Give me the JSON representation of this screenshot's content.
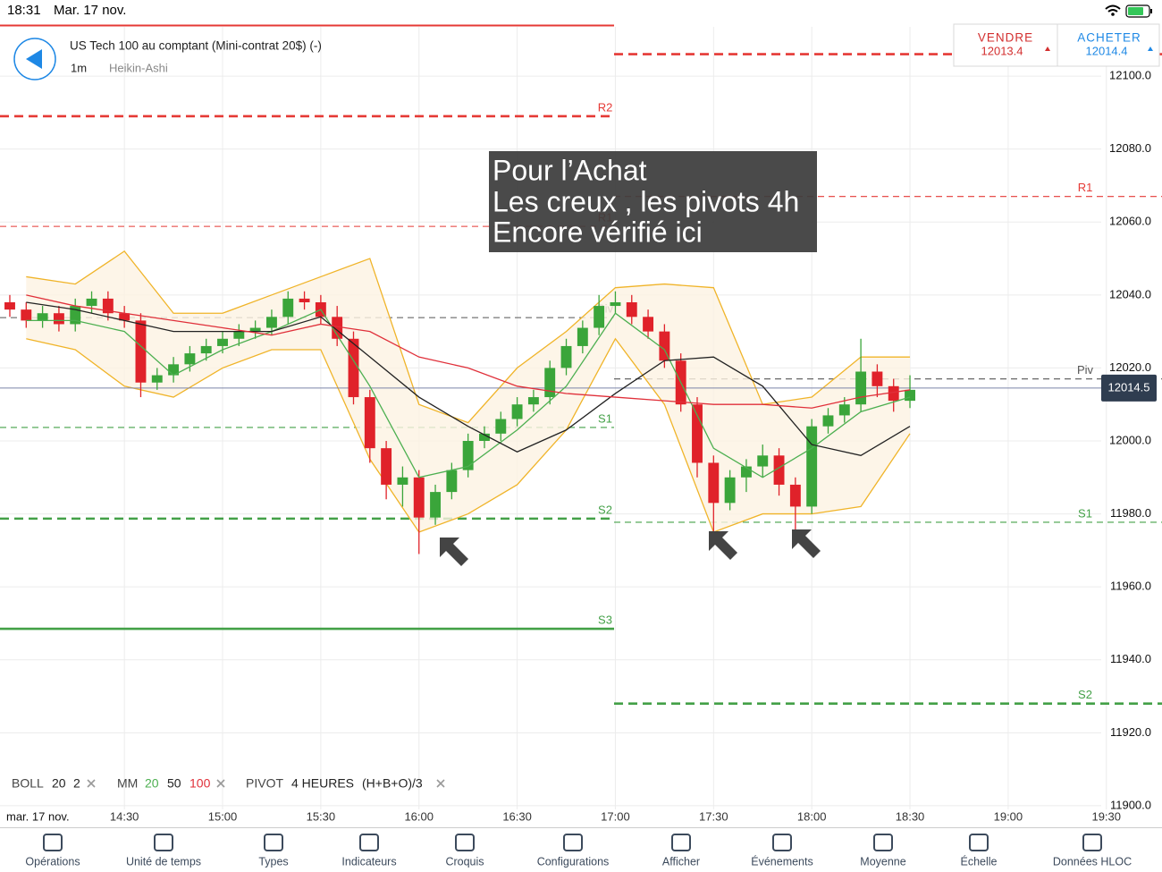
{
  "status_bar": {
    "time": "18:31",
    "date": "Mar. 17 nov."
  },
  "header": {
    "instrument": "US Tech 100 au comptant (Mini-contrat 20$) (-)",
    "timeframe": "1m",
    "chart_type": "Heikin-Ashi"
  },
  "trade": {
    "sell_label": "VENDRE",
    "sell_price": "12013.4",
    "buy_label": "ACHETER",
    "buy_price": "12014.4"
  },
  "annotation": [
    "Pour l’Achat",
    "Les creux , les pivots 4h",
    "Encore vérifié ici"
  ],
  "indicator_legend": {
    "boll": [
      "BOLL",
      "20",
      "2"
    ],
    "mm": [
      "MM",
      "20",
      "50",
      "100"
    ],
    "pivot": [
      "PIVOT",
      "4 HEURES",
      "(H+B+O)/3"
    ]
  },
  "date_label": "mar. 17 nov.",
  "toolbar": [
    "Opérations",
    "Unité de temps",
    "Types",
    "Indicateurs",
    "Croquis",
    "Configurations",
    "Afficher",
    "Événements",
    "Moyenne",
    "Échelle",
    "Données HLOC"
  ],
  "chart_data": {
    "type": "candlestick",
    "xlim": [
      "13:52",
      "19:47"
    ],
    "ylim": [
      11899,
      12113.5
    ],
    "xticks": [
      "14:30",
      "15:00",
      "15:30",
      "16:00",
      "16:30",
      "17:00",
      "17:30",
      "18:00",
      "18:30",
      "19:00",
      "19:30"
    ],
    "yticks": [
      {
        "value": 12100,
        "label": "12100.0"
      },
      {
        "value": 12080,
        "label": "12080.0"
      },
      {
        "value": 12060,
        "label": "12060.0"
      },
      {
        "value": 12040,
        "label": "12040.0"
      },
      {
        "value": 12020,
        "label": "12020.0"
      },
      {
        "value": 12000,
        "label": "12000.0"
      },
      {
        "value": 11980,
        "label": "11980.0"
      },
      {
        "value": 11960,
        "label": "11960.0"
      },
      {
        "value": 11940,
        "label": "11940.0"
      },
      {
        "value": 11920,
        "label": "11920.0"
      },
      {
        "value": 11900,
        "label": "11900.0"
      }
    ],
    "grid": true,
    "up_color": "#3aa53a",
    "down_color": "#e0222a",
    "times": [
      "13:55",
      "14:00",
      "14:05",
      "14:10",
      "14:15",
      "14:20",
      "14:25",
      "14:30",
      "14:35",
      "14:40",
      "14:45",
      "14:50",
      "14:55",
      "15:00",
      "15:05",
      "15:10",
      "15:15",
      "15:20",
      "15:25",
      "15:30",
      "15:35",
      "15:40",
      "15:45",
      "15:50",
      "15:55",
      "16:00",
      "16:05",
      "16:10",
      "16:15",
      "16:20",
      "16:25",
      "16:30",
      "16:35",
      "16:40",
      "16:45",
      "16:50",
      "16:55",
      "17:00",
      "17:05",
      "17:10",
      "17:15",
      "17:20",
      "17:25",
      "17:30",
      "17:35",
      "17:40",
      "17:45",
      "17:50",
      "17:55",
      "18:00",
      "18:05",
      "18:10",
      "18:15",
      "18:20",
      "18:25",
      "18:30"
    ],
    "open": [
      12038,
      12036,
      12033,
      12035,
      12032,
      12037,
      12039,
      12035,
      12033,
      12016,
      12018,
      12021,
      12024,
      12026,
      12028,
      12030,
      12031,
      12034,
      12039,
      12038,
      12034,
      12028,
      12012,
      11998,
      11988,
      11990,
      11979,
      11986,
      11992,
      12000,
      12002,
      12006,
      12010,
      12012,
      12020,
      12026,
      12031,
      12037,
      12038,
      12034,
      12030,
      12022,
      12010,
      11994,
      11983,
      11990,
      11993,
      11996,
      11988,
      11982,
      12004,
      12007,
      12010,
      12019,
      12015,
      12011
    ],
    "high": [
      12040,
      12038,
      12037,
      12037,
      12039,
      12041,
      12041,
      12037,
      12035,
      12020,
      12023,
      12026,
      12028,
      12030,
      12032,
      12033,
      12036,
      12041,
      12041,
      12040,
      12037,
      12030,
      12014,
      12000,
      11993,
      11992,
      11988,
      11994,
      12002,
      12004,
      12008,
      12012,
      12014,
      12022,
      12028,
      12033,
      12040,
      12041,
      12040,
      12036,
      12032,
      12024,
      12012,
      11996,
      11992,
      11995,
      11999,
      11998,
      11990,
      12006,
      12009,
      12012,
      12028,
      12021,
      12017,
      12018
    ],
    "low": [
      12034,
      12031,
      12031,
      12030,
      12030,
      12035,
      12033,
      12031,
      12012,
      12014,
      12016,
      12019,
      12022,
      12024,
      12026,
      12028,
      12029,
      12032,
      12036,
      12032,
      12026,
      12010,
      11994,
      11984,
      11982,
      11969,
      11977,
      11984,
      11990,
      11998,
      12000,
      12004,
      12008,
      12010,
      12018,
      12024,
      12029,
      12035,
      12032,
      12028,
      12020,
      12008,
      11990,
      11972,
      11981,
      11986,
      11990,
      11985,
      11975,
      11980,
      12002,
      12005,
      12008,
      12012,
      12008,
      12009
    ],
    "close": [
      12036,
      12033,
      12035,
      12032,
      12037,
      12039,
      12035,
      12033,
      12016,
      12018,
      12021,
      12024,
      12026,
      12028,
      12030,
      12031,
      12034,
      12039,
      12038,
      12034,
      12028,
      12012,
      11998,
      11988,
      11990,
      11979,
      11986,
      11992,
      12000,
      12002,
      12006,
      12010,
      12012,
      12020,
      12026,
      12031,
      12037,
      12038,
      12034,
      12030,
      12022,
      12010,
      11994,
      11983,
      11990,
      11993,
      11996,
      11988,
      11982,
      12004,
      12007,
      12010,
      12019,
      12015,
      12011,
      12014
    ],
    "indicator_times": [
      "14:00",
      "14:15",
      "14:30",
      "14:45",
      "15:00",
      "15:15",
      "15:30",
      "15:45",
      "16:00",
      "16:15",
      "16:30",
      "16:45",
      "17:00",
      "17:15",
      "17:30",
      "17:45",
      "18:00",
      "18:15",
      "18:30"
    ],
    "bands": {
      "color": "#f0b429",
      "upper": [
        12045,
        12043,
        12052,
        12035,
        12035,
        12040,
        12045,
        12050,
        12010,
        12005,
        12020,
        12030,
        12042,
        12043,
        12042,
        12010,
        12012,
        12023,
        12023
      ],
      "lower": [
        12028,
        12025,
        12015,
        12012,
        12020,
        12025,
        12025,
        11995,
        11975,
        11980,
        11988,
        12003,
        12028,
        12010,
        11975,
        11980,
        11980,
        11982,
        12002
      ]
    },
    "lines": [
      {
        "color": "#4caf50",
        "values": [
          12033,
          12033,
          12030,
          12018,
          12025,
          12030,
          12036,
          12015,
          11990,
          11993,
          12003,
          12015,
          12035,
          12025,
          11998,
          11990,
          11998,
          12008,
          12012
        ]
      },
      {
        "color": "#222222",
        "values": [
          12038,
          12036,
          12033,
          12030,
          12030,
          12030,
          12034,
          12023,
          12012,
          12004,
          11997,
          12003,
          12013,
          12022,
          12023,
          12015,
          11999,
          11996,
          12004
        ]
      },
      {
        "color": "#e0303a",
        "values": [
          12040,
          12037,
          12035,
          12033,
          12031,
          12029,
          12032,
          12030,
          12023,
          12020,
          12015,
          12013,
          12012,
          12011,
          12010,
          12010,
          12009,
          12012,
          12014
        ]
      }
    ],
    "pivots_left": [
      {
        "label": "R2",
        "value": 12089,
        "color": "#e53935",
        "weight": "bold",
        "dashed": true
      },
      {
        "label": "R1",
        "value": 12058.8,
        "color": "#e53935",
        "weight": "thin",
        "dashed": true
      },
      {
        "label": "Piv",
        "value": 12033.8,
        "color": "#555555",
        "weight": "thin",
        "dashed": true
      },
      {
        "label": "S1",
        "value": 12003.7,
        "color": "#43a047",
        "weight": "thin",
        "dashed": true
      },
      {
        "label": "S2",
        "value": 11978.7,
        "color": "#43a047",
        "weight": "bold",
        "dashed": true
      },
      {
        "label": "S3",
        "value": 11948.5,
        "color": "#43a047",
        "weight": "bold",
        "dashed": false
      }
    ],
    "pivots_right": [
      {
        "label": null,
        "value": 12106,
        "color": "#e53935",
        "weight": "bold",
        "dashed": true
      },
      {
        "label": "R1",
        "value": 12067,
        "color": "#e53935",
        "weight": "thin",
        "dashed": true
      },
      {
        "label": "Piv",
        "value": 12017,
        "color": "#555555",
        "weight": "thin",
        "dashed": true
      },
      {
        "label": "S1",
        "value": 11977.7,
        "color": "#43a047",
        "weight": "thin",
        "dashed": true
      },
      {
        "label": "S2",
        "value": 11928,
        "color": "#43a047",
        "weight": "bold",
        "dashed": true
      }
    ],
    "last_price": 12014.5
  }
}
